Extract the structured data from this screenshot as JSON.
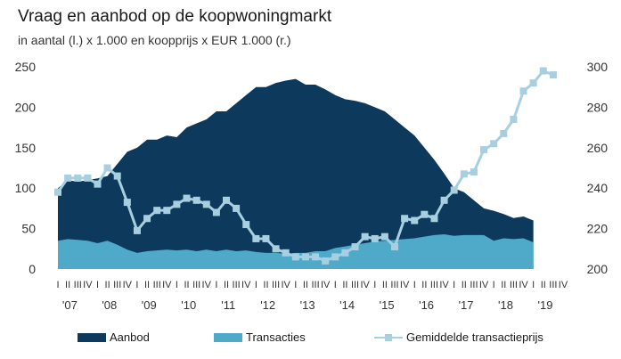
{
  "title": "Vraag en aanbod op de koopwoningmarkt",
  "subtitle": "in aantal (l.) x 1.000 en koopprijs x EUR 1.000 (r.)",
  "colors": {
    "aanbod": "#0d3a5c",
    "transacties": "#4fa9c8",
    "prijs": "#a8cfe0",
    "prijs_marker": "#a8cfe0"
  },
  "legend": {
    "aanbod": "Aanbod",
    "transacties": "Transacties",
    "prijs": "Gemiddelde transactieprijs"
  },
  "chart_data": {
    "type": "area",
    "title": "Vraag en aanbod op de koopwoningmarkt",
    "subtitle": "in aantal (l.) x 1.000 en koopprijs x EUR 1.000 (r.)",
    "x_quarter_labels": [
      "I",
      "II",
      "III",
      "IV"
    ],
    "year_labels": [
      "'07",
      "'08",
      "'09",
      "'10",
      "'11",
      "'12",
      "'13",
      "'14",
      "'15",
      "'16",
      "'17",
      "'18",
      "'19"
    ],
    "left_axis": {
      "ylim": [
        0,
        250
      ],
      "ticks": [
        "0",
        "50",
        "100",
        "150",
        "200",
        "250"
      ]
    },
    "right_axis": {
      "ylim": [
        200,
        300
      ],
      "ticks": [
        "200",
        "220",
        "240",
        "260",
        "280",
        "300"
      ]
    },
    "series": [
      {
        "name": "Aanbod",
        "type": "area",
        "axis": "left",
        "values": [
          100,
          110,
          108,
          110,
          112,
          115,
          130,
          145,
          150,
          160,
          160,
          165,
          163,
          175,
          180,
          185,
          195,
          195,
          205,
          215,
          225,
          225,
          230,
          233,
          235,
          228,
          228,
          222,
          215,
          210,
          208,
          205,
          200,
          195,
          185,
          175,
          165,
          150,
          135,
          118,
          100,
          95,
          85,
          75,
          72,
          68,
          63,
          65,
          60
        ]
      },
      {
        "name": "Transacties",
        "type": "area",
        "axis": "left",
        "values": [
          35,
          37,
          36,
          35,
          32,
          35,
          30,
          24,
          20,
          22,
          23,
          24,
          23,
          24,
          22,
          24,
          22,
          24,
          22,
          23,
          21,
          20,
          20,
          19,
          20,
          20,
          22,
          22,
          26,
          28,
          30,
          32,
          34,
          35,
          36,
          37,
          38,
          40,
          42,
          43,
          41,
          42,
          42,
          42,
          35,
          38,
          37,
          38,
          33
        ]
      },
      {
        "name": "Gemiddelde transactieprijs",
        "type": "line",
        "axis": "right",
        "values": [
          238,
          245,
          245,
          245,
          242,
          250,
          246,
          233,
          219,
          225,
          229,
          229,
          232,
          235,
          234,
          232,
          228,
          234,
          230,
          222,
          215,
          215,
          210,
          208,
          206,
          206,
          206,
          204,
          206,
          208,
          211,
          216,
          215,
          216,
          211,
          225,
          224,
          227,
          225,
          234,
          239,
          247,
          248,
          259,
          262,
          267,
          274,
          288,
          292,
          298,
          296
        ]
      }
    ]
  }
}
